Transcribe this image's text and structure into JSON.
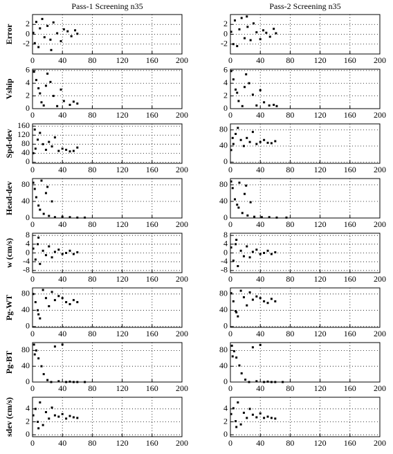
{
  "chart_data": [
    {
      "type": "scatter",
      "title": "Pass-1 Screening n35",
      "ylabel": "Error",
      "x": [
        1,
        3,
        5,
        8,
        10,
        13,
        16,
        20,
        24,
        28,
        33,
        38,
        42,
        47,
        52,
        57,
        60,
        25
      ],
      "values": [
        0.3,
        -1.8,
        2.5,
        -2.6,
        1.2,
        3.1,
        -0.6,
        1.7,
        -1.1,
        2.4,
        0.2,
        -1.4,
        1.0,
        0.6,
        -0.4,
        0.8,
        0.1,
        -3.2
      ],
      "xlim": [
        0,
        200
      ],
      "ylim": [
        -4,
        4
      ],
      "xticks": [
        0,
        40,
        80,
        120,
        160,
        200
      ],
      "yticks": [
        -2,
        0,
        2
      ],
      "color": "#000000",
      "grid": true
    },
    {
      "type": "scatter",
      "title": "Pass-2 Screening n35",
      "x": [
        1,
        4,
        6,
        9,
        12,
        15,
        19,
        23,
        27,
        31,
        35,
        40,
        44,
        48,
        53,
        58,
        61,
        22
      ],
      "values": [
        0.5,
        -2.0,
        2.8,
        -2.4,
        1.0,
        3.3,
        -0.8,
        1.5,
        -1.2,
        2.2,
        0.4,
        -1.0,
        0.8,
        0.3,
        -0.5,
        1.1,
        0.2,
        3.6
      ],
      "xlim": [
        0,
        200
      ],
      "ylim": [
        -4,
        4
      ],
      "xticks": [
        0,
        40,
        80,
        120,
        160,
        200
      ],
      "yticks": [
        -2,
        0,
        2
      ],
      "color": "#000000",
      "grid": true
    },
    {
      "type": "scatter",
      "ylabel": "Vship",
      "x": [
        2,
        5,
        8,
        12,
        15,
        20,
        24,
        28,
        33,
        38,
        42,
        50,
        55,
        60,
        10,
        18
      ],
      "values": [
        5.8,
        4.5,
        3.2,
        1.0,
        0.5,
        5.5,
        4.2,
        2.0,
        0.4,
        3.0,
        1.2,
        0.6,
        1.1,
        0.8,
        2.4,
        3.6
      ],
      "xlim": [
        0,
        200
      ],
      "ylim": [
        0,
        6.2
      ],
      "xticks": [
        0,
        40,
        80,
        120,
        160,
        200
      ],
      "yticks": [
        0,
        2,
        4,
        6
      ],
      "color": "#000000",
      "grid": true
    },
    {
      "type": "scatter",
      "x": [
        1,
        4,
        7,
        11,
        16,
        21,
        25,
        30,
        35,
        40,
        45,
        52,
        58,
        62,
        9,
        19
      ],
      "values": [
        5.9,
        4.6,
        3.0,
        1.2,
        0.4,
        5.4,
        4.0,
        2.2,
        0.5,
        2.9,
        1.0,
        0.5,
        0.6,
        0.4,
        2.5,
        3.4
      ],
      "xlim": [
        0,
        200
      ],
      "ylim": [
        0,
        6.2
      ],
      "xticks": [
        0,
        40,
        80,
        120,
        160,
        200
      ],
      "yticks": [
        0,
        2,
        4,
        6
      ],
      "color": "#000000",
      "grid": true
    },
    {
      "type": "scatter",
      "ylabel": "Spd-dev",
      "x": [
        1,
        4,
        7,
        10,
        14,
        18,
        22,
        26,
        30,
        35,
        40,
        45,
        50,
        55,
        60,
        3
      ],
      "values": [
        40,
        60,
        100,
        130,
        80,
        55,
        90,
        70,
        110,
        50,
        60,
        55,
        48,
        50,
        65,
        145
      ],
      "xlim": [
        0,
        200
      ],
      "ylim": [
        -5,
        170
      ],
      "xticks": [
        0,
        40,
        80,
        120,
        160,
        200
      ],
      "yticks": [
        0,
        40,
        80,
        120,
        160
      ],
      "color": "#000000",
      "grid": true
    },
    {
      "type": "scatter",
      "x": [
        1,
        4,
        7,
        10,
        14,
        18,
        22,
        26,
        30,
        35,
        40,
        45,
        50,
        55,
        60,
        3
      ],
      "values": [
        30,
        45,
        70,
        85,
        55,
        40,
        60,
        50,
        75,
        45,
        50,
        55,
        48,
        47,
        52,
        60
      ],
      "xlim": [
        0,
        200
      ],
      "ylim": [
        -3,
        95
      ],
      "xticks": [
        0,
        40,
        80,
        120,
        160,
        200
      ],
      "yticks": [
        0,
        40,
        80
      ],
      "color": "#000000",
      "grid": true
    },
    {
      "type": "scatter",
      "ylabel": "Head-dev",
      "x": [
        1,
        3,
        5,
        8,
        12,
        15,
        18,
        22,
        26,
        30,
        40,
        50,
        60,
        70,
        10,
        20
      ],
      "values": [
        85,
        70,
        50,
        30,
        90,
        10,
        60,
        5,
        40,
        2,
        3,
        2,
        1,
        1,
        20,
        75
      ],
      "xlim": [
        0,
        200
      ],
      "ylim": [
        0,
        95
      ],
      "xticks": [
        0,
        40,
        80,
        120,
        160,
        200
      ],
      "yticks": [
        0,
        40,
        80
      ],
      "color": "#000000",
      "grid": true
    },
    {
      "type": "scatter",
      "x": [
        1,
        3,
        6,
        9,
        12,
        16,
        19,
        23,
        27,
        32,
        42,
        52,
        62,
        75,
        11,
        21
      ],
      "values": [
        88,
        72,
        45,
        32,
        85,
        12,
        58,
        6,
        38,
        3,
        2,
        2,
        1,
        1,
        25,
        78
      ],
      "xlim": [
        0,
        200
      ],
      "ylim": [
        0,
        95
      ],
      "xticks": [
        0,
        40,
        80,
        120,
        160,
        200
      ],
      "yticks": [
        0,
        40,
        80
      ],
      "color": "#000000",
      "grid": true
    },
    {
      "type": "scatter",
      "ylabel": "w (cm/s)",
      "x": [
        1,
        4,
        7,
        10,
        14,
        18,
        22,
        26,
        30,
        35,
        40,
        45,
        50,
        55,
        60,
        8
      ],
      "values": [
        2,
        -3,
        4,
        -5,
        1,
        -1,
        3,
        -2,
        0.5,
        1.5,
        -0.5,
        0,
        1,
        -0.5,
        0.3,
        7
      ],
      "xlim": [
        0,
        200
      ],
      "ylim": [
        -9,
        9
      ],
      "xticks": [
        0,
        40,
        80,
        120,
        160,
        200
      ],
      "yticks": [
        -8,
        -4,
        0,
        4,
        8
      ],
      "color": "#000000",
      "grid": true
    },
    {
      "type": "scatter",
      "x": [
        1,
        4,
        7,
        10,
        14,
        18,
        22,
        26,
        30,
        35,
        40,
        45,
        50,
        55,
        60,
        8
      ],
      "values": [
        2.5,
        -3.5,
        4,
        -6,
        1,
        -1.5,
        3,
        -2,
        0.5,
        1.5,
        -0.5,
        0,
        1,
        -0.5,
        0.3,
        6
      ],
      "xlim": [
        0,
        200
      ],
      "ylim": [
        -9,
        9
      ],
      "xticks": [
        0,
        40,
        80,
        120,
        160,
        200
      ],
      "yticks": [
        -8,
        -4,
        0,
        4,
        8
      ],
      "color": "#000000",
      "grid": true
    },
    {
      "type": "scatter",
      "ylabel": "Pg-WT",
      "x": [
        1,
        4,
        7,
        10,
        14,
        18,
        22,
        26,
        30,
        35,
        40,
        45,
        50,
        55,
        60,
        8
      ],
      "values": [
        80,
        60,
        40,
        20,
        90,
        70,
        50,
        85,
        65,
        75,
        70,
        60,
        55,
        65,
        60,
        30
      ],
      "xlim": [
        0,
        200
      ],
      "ylim": [
        -2,
        95
      ],
      "xticks": [
        0,
        40,
        80,
        120,
        160,
        200
      ],
      "yticks": [
        0,
        40,
        80
      ],
      "color": "#000000",
      "grid": true
    },
    {
      "type": "scatter",
      "x": [
        1,
        4,
        7,
        10,
        14,
        18,
        22,
        26,
        30,
        35,
        40,
        45,
        50,
        55,
        60,
        8
      ],
      "values": [
        82,
        62,
        38,
        25,
        88,
        72,
        52,
        84,
        66,
        74,
        70,
        62,
        58,
        68,
        62,
        35
      ],
      "xlim": [
        0,
        200
      ],
      "ylim": [
        -2,
        95
      ],
      "xticks": [
        0,
        40,
        80,
        120,
        160,
        200
      ],
      "yticks": [
        0,
        40,
        80
      ],
      "color": "#000000",
      "grid": true
    },
    {
      "type": "scatter",
      "ylabel": "Pg-BT",
      "x": [
        2,
        5,
        8,
        12,
        15,
        20,
        25,
        30,
        35,
        40,
        45,
        50,
        55,
        60,
        70,
        3
      ],
      "values": [
        95,
        80,
        60,
        40,
        20,
        5,
        0,
        90,
        2,
        95,
        0,
        1,
        0,
        0,
        0,
        70
      ],
      "xlim": [
        0,
        200
      ],
      "ylim": [
        0,
        100
      ],
      "xticks": [
        0,
        40,
        80,
        120,
        160,
        200
      ],
      "yticks": [
        0,
        40,
        80
      ],
      "color": "#000000",
      "grid": true
    },
    {
      "type": "scatter",
      "x": [
        2,
        5,
        8,
        12,
        15,
        20,
        25,
        30,
        35,
        40,
        45,
        50,
        55,
        60,
        70,
        3
      ],
      "values": [
        92,
        78,
        62,
        42,
        22,
        6,
        0,
        88,
        2,
        94,
        0,
        1,
        0,
        0,
        0,
        65
      ],
      "xlim": [
        0,
        200
      ],
      "ylim": [
        0,
        100
      ],
      "xticks": [
        0,
        40,
        80,
        120,
        160,
        200
      ],
      "yticks": [
        0,
        40,
        80
      ],
      "color": "#000000",
      "grid": true
    },
    {
      "type": "scatter",
      "ylabel": "sdev (cm/s)",
      "x": [
        1,
        4,
        7,
        10,
        14,
        18,
        22,
        26,
        30,
        35,
        40,
        45,
        50,
        55,
        60,
        8
      ],
      "values": [
        3,
        4,
        2,
        5,
        1.5,
        3.5,
        2.5,
        4.2,
        3.0,
        2.8,
        3.2,
        2.5,
        2.9,
        2.7,
        2.6,
        1.0
      ],
      "xlim": [
        0,
        200
      ],
      "ylim": [
        -0.3,
        5.8
      ],
      "xticks": [
        0,
        40,
        80,
        120,
        160,
        200
      ],
      "yticks": [
        0,
        2,
        4
      ],
      "color": "#000000",
      "grid": true
    },
    {
      "type": "scatter",
      "x": [
        1,
        4,
        7,
        10,
        14,
        18,
        22,
        26,
        30,
        35,
        40,
        45,
        50,
        55,
        60,
        8
      ],
      "values": [
        3.2,
        4.1,
        2.1,
        5.0,
        1.6,
        3.4,
        2.6,
        4.0,
        3.1,
        2.7,
        3.3,
        2.6,
        2.8,
        2.6,
        2.5,
        1.2
      ],
      "xlim": [
        0,
        200
      ],
      "ylim": [
        -0.3,
        5.8
      ],
      "xticks": [
        0,
        40,
        80,
        120,
        160,
        200
      ],
      "yticks": [
        0,
        2,
        4
      ],
      "color": "#000000",
      "grid": true
    }
  ]
}
